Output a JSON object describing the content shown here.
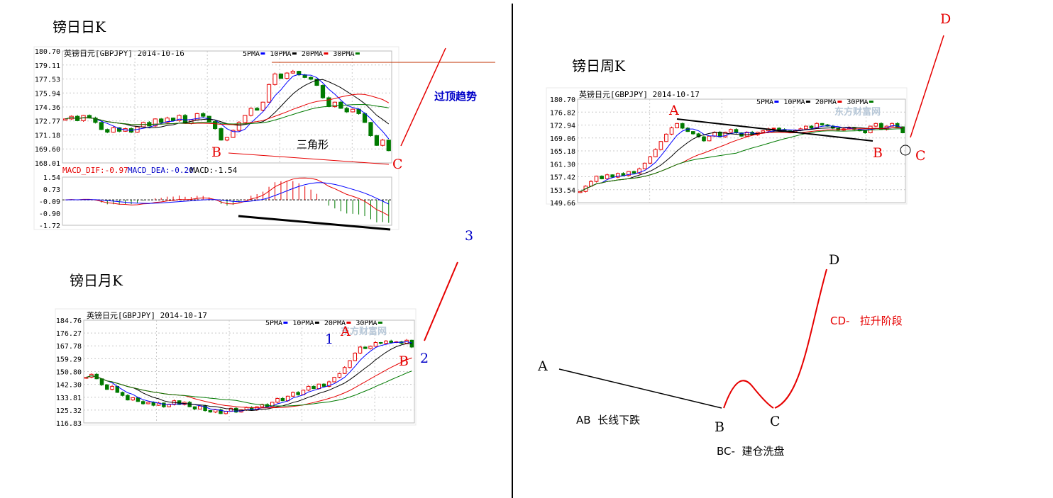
{
  "colors": {
    "up": "#e60000",
    "down": "#007a00",
    "ma5": "#0000ff",
    "ma10": "#000000",
    "ma20": "#e60000",
    "ma30": "#007a00",
    "grid": "#c8c8c8",
    "annot_red": "#e60000",
    "annot_blue": "#0000c8",
    "annot_black": "#000000"
  },
  "sections": {
    "daily": "镑日日K",
    "weekly": "镑日周K",
    "monthly": "镑日月K"
  },
  "ma_legend": [
    "5PMA",
    "10PMA",
    "20PMA",
    "30PMA"
  ],
  "watermark": "东方财富网",
  "chart_data": [
    {
      "id": "daily",
      "type": "candlestick",
      "title": "英镑日元[GBPJPY] 2014-10-16",
      "y_ticks": [
        180.7,
        179.11,
        177.53,
        175.94,
        174.36,
        172.77,
        171.18,
        169.6,
        168.01
      ],
      "ylim": [
        168.01,
        180.7
      ],
      "close": [
        173.0,
        173.3,
        172.8,
        173.4,
        173.1,
        172.6,
        171.8,
        171.5,
        172.0,
        171.6,
        171.9,
        171.5,
        172.1,
        172.6,
        172.2,
        173.0,
        172.6,
        173.1,
        172.8,
        173.4,
        172.5,
        172.9,
        173.6,
        173.3,
        172.7,
        171.9,
        170.6,
        170.9,
        171.7,
        172.6,
        173.4,
        174.2,
        174.0,
        174.9,
        176.9,
        178.1,
        177.6,
        178.2,
        178.4,
        178.0,
        177.7,
        177.5,
        176.8,
        175.4,
        174.4,
        174.9,
        174.2,
        173.8,
        174.1,
        173.6,
        172.6,
        171.1,
        170.0,
        170.6,
        169.4
      ],
      "annotations": [
        "B",
        "C",
        "三角形",
        "过顶趋势"
      ],
      "macd": {
        "label_dif": "MACD_DIF:-0.97",
        "label_dea": "MACD_DEA:-0.20",
        "label_macd": "MACD:-1.54",
        "y_ticks": [
          1.54,
          0.73,
          -0.09,
          -0.9,
          -1.72
        ],
        "ylim": [
          -1.72,
          1.54
        ]
      }
    },
    {
      "id": "weekly",
      "type": "candlestick",
      "title": "英镑日元[GBPJPY] 2014-10-17",
      "y_ticks": [
        180.7,
        176.82,
        172.94,
        169.06,
        165.18,
        161.3,
        157.42,
        153.54,
        149.66
      ],
      "ylim": [
        149.66,
        180.7
      ],
      "close": [
        153.0,
        154.6,
        156.0,
        157.6,
        156.8,
        158.0,
        157.3,
        158.4,
        157.8,
        159.0,
        158.5,
        159.8,
        161.5,
        163.4,
        165.6,
        168.0,
        170.2,
        172.1,
        173.4,
        172.0,
        171.0,
        170.3,
        169.4,
        168.2,
        169.6,
        170.8,
        169.4,
        170.8,
        171.6,
        170.6,
        169.6,
        170.8,
        170.0,
        170.8,
        171.2,
        171.8,
        172.0,
        171.6,
        171.2,
        170.9,
        171.4,
        171.8,
        172.6,
        172.0,
        173.4,
        173.0,
        172.6,
        172.0,
        171.4,
        171.8,
        172.2,
        171.6,
        171.2,
        170.6,
        172.6,
        173.4,
        171.6,
        172.6,
        173.4,
        172.4,
        170.6
      ],
      "annotations": [
        "A",
        "B",
        "C",
        "D"
      ]
    },
    {
      "id": "monthly",
      "type": "candlestick",
      "title": "英镑日元[GBPJPY] 2014-10-17",
      "y_ticks": [
        184.76,
        176.27,
        167.78,
        159.29,
        150.8,
        142.3,
        133.81,
        125.32,
        116.83
      ],
      "ylim": [
        116.83,
        184.76
      ],
      "close": [
        147.0,
        149.0,
        146.0,
        142.0,
        139.0,
        141.0,
        137.0,
        135.0,
        132.0,
        133.5,
        131.0,
        129.5,
        130.5,
        128.5,
        130.0,
        127.5,
        129.0,
        131.5,
        129.0,
        130.5,
        127.5,
        126.0,
        128.0,
        125.0,
        124.0,
        125.5,
        123.0,
        124.5,
        126.5,
        124.0,
        125.5,
        127.0,
        125.5,
        127.5,
        129.0,
        127.5,
        130.5,
        133.0,
        131.5,
        134.5,
        137.0,
        135.5,
        138.5,
        141.0,
        139.5,
        142.5,
        141.0,
        144.0,
        147.0,
        149.5,
        153.5,
        158.0,
        163.0,
        167.0,
        166.0,
        167.5,
        170.0,
        169.5,
        171.0,
        170.0,
        170.5,
        169.5,
        171.5,
        167.0
      ],
      "annotations": [
        "1",
        "2",
        "3",
        "A",
        "B"
      ]
    },
    {
      "id": "schematic",
      "type": "line",
      "points": [
        "A",
        "B",
        "C",
        "D"
      ],
      "labels": {
        "ab": "AB  长线下跌",
        "bc": "BC-  建仓洗盘",
        "cd": "CD-   拉升阶段"
      }
    }
  ]
}
